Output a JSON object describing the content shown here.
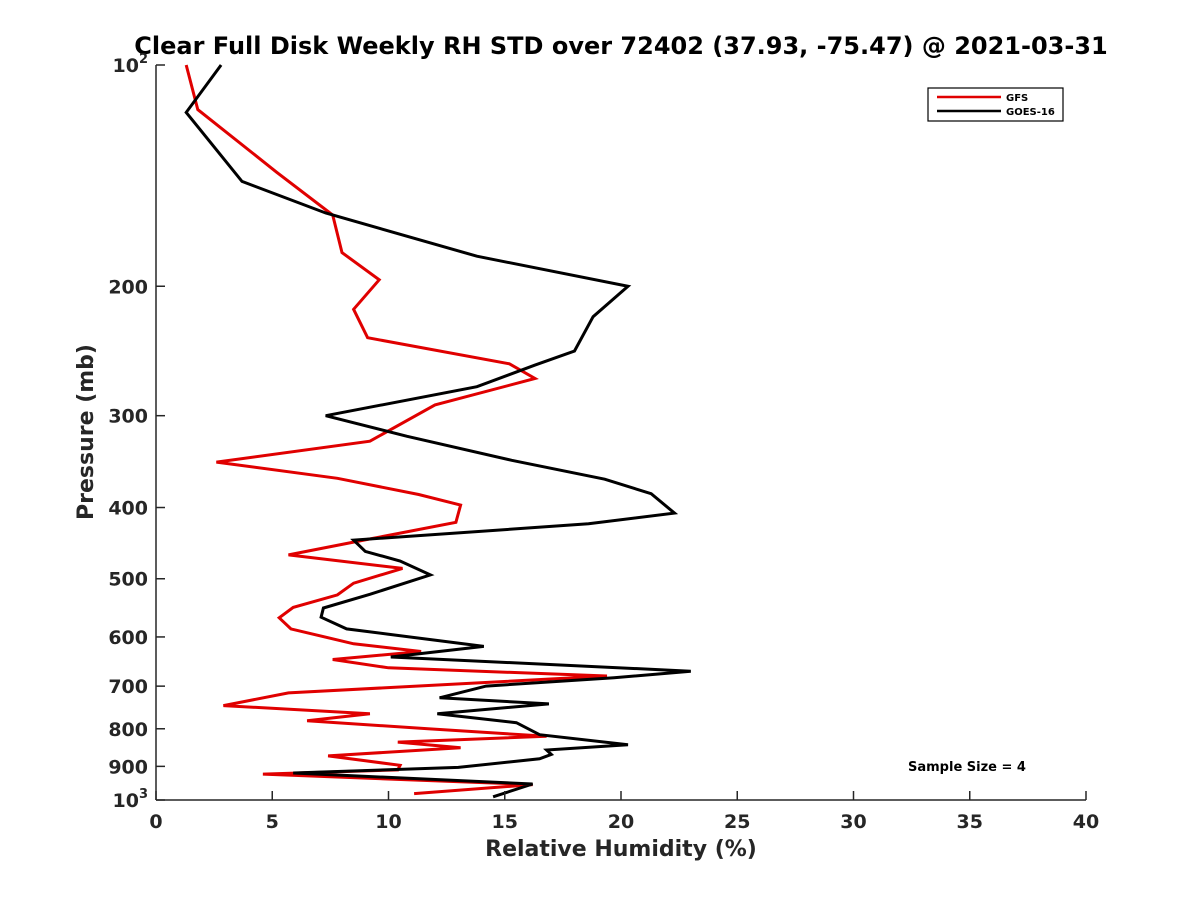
{
  "chart_data": {
    "type": "line",
    "title": "Clear Full Disk Weekly RH STD over 72402 (37.93, -75.47) @ 2021-03-31",
    "xlabel": "Relative Humidity (%)",
    "ylabel": "Pressure (mb)",
    "xlim": [
      0,
      40
    ],
    "ylim": [
      100,
      1000
    ],
    "yscale": "log",
    "yreversed": true,
    "xticks": [
      0,
      5,
      10,
      15,
      20,
      25,
      30,
      35,
      40
    ],
    "xtick_labels": [
      "0",
      "5",
      "10",
      "15",
      "20",
      "25",
      "30",
      "35",
      "40"
    ],
    "yticks": [
      {
        "value": 100,
        "base": "10",
        "exp": "2"
      },
      {
        "value": 200,
        "label": "200"
      },
      {
        "value": 300,
        "label": "300"
      },
      {
        "value": 400,
        "label": "400"
      },
      {
        "value": 500,
        "label": "500"
      },
      {
        "value": 600,
        "label": "600"
      },
      {
        "value": 700,
        "label": "700"
      },
      {
        "value": 800,
        "label": "800"
      },
      {
        "value": 900,
        "label": "900"
      },
      {
        "value": 1000,
        "base": "10",
        "exp": "3"
      }
    ],
    "legend_position": "top-right",
    "annotation": "Sample Size = 4",
    "series": [
      {
        "name": "GFS",
        "color": "#e00000",
        "points": [
          [
            1.3,
            100
          ],
          [
            1.8,
            115
          ],
          [
            5.2,
            140
          ],
          [
            7.6,
            160
          ],
          [
            8.0,
            180
          ],
          [
            9.6,
            196
          ],
          [
            8.5,
            215
          ],
          [
            9.1,
            235
          ],
          [
            15.2,
            255
          ],
          [
            16.3,
            267
          ],
          [
            12.0,
            290
          ],
          [
            9.2,
            325
          ],
          [
            2.6,
            347
          ],
          [
            7.8,
            365
          ],
          [
            11.3,
            384
          ],
          [
            13.1,
            397
          ],
          [
            12.9,
            419
          ],
          [
            9.1,
            442
          ],
          [
            5.7,
            464
          ],
          [
            10.6,
            484
          ],
          [
            8.5,
            507
          ],
          [
            7.8,
            526
          ],
          [
            5.9,
            547
          ],
          [
            5.3,
            565
          ],
          [
            5.8,
            585
          ],
          [
            8.5,
            613
          ],
          [
            11.4,
            628
          ],
          [
            7.6,
            644
          ],
          [
            10.0,
            661
          ],
          [
            19.4,
            678
          ],
          [
            5.7,
            715
          ],
          [
            2.9,
            744
          ],
          [
            9.2,
            763
          ],
          [
            6.5,
            780
          ],
          [
            11.7,
            800
          ],
          [
            16.8,
            819
          ],
          [
            10.4,
            834
          ],
          [
            13.1,
            849
          ],
          [
            7.4,
            871
          ],
          [
            10.5,
            897
          ],
          [
            10.4,
            910
          ],
          [
            4.6,
            922
          ],
          [
            16.2,
            953
          ],
          [
            11.1,
            980
          ]
        ]
      },
      {
        "name": "GOES-16",
        "color": "#000000",
        "points": [
          [
            2.8,
            100
          ],
          [
            1.3,
            116
          ],
          [
            3.7,
            144
          ],
          [
            7.3,
            159
          ],
          [
            13.8,
            182
          ],
          [
            20.3,
            200
          ],
          [
            18.8,
            220
          ],
          [
            18.0,
            245
          ],
          [
            16.3,
            256
          ],
          [
            13.8,
            274
          ],
          [
            7.3,
            300
          ],
          [
            10.8,
            320
          ],
          [
            15.3,
            345
          ],
          [
            19.3,
            366
          ],
          [
            21.3,
            383
          ],
          [
            22.3,
            407
          ],
          [
            18.6,
            421
          ],
          [
            8.5,
            443
          ],
          [
            9.0,
            459
          ],
          [
            10.5,
            473
          ],
          [
            11.8,
            494
          ],
          [
            9.2,
            525
          ],
          [
            7.2,
            548
          ],
          [
            7.1,
            564
          ],
          [
            8.2,
            585
          ],
          [
            14.1,
            618
          ],
          [
            10.1,
            639
          ],
          [
            23.0,
            668
          ],
          [
            19.7,
            682
          ],
          [
            14.2,
            700
          ],
          [
            12.2,
            726
          ],
          [
            16.9,
            740
          ],
          [
            12.1,
            763
          ],
          [
            15.5,
            785
          ],
          [
            16.5,
            815
          ],
          [
            20.3,
            841
          ],
          [
            16.8,
            855
          ],
          [
            17.0,
            867
          ],
          [
            16.5,
            879
          ],
          [
            13.0,
            903
          ],
          [
            5.9,
            919
          ],
          [
            16.2,
            951
          ],
          [
            14.5,
            990
          ]
        ]
      }
    ]
  }
}
